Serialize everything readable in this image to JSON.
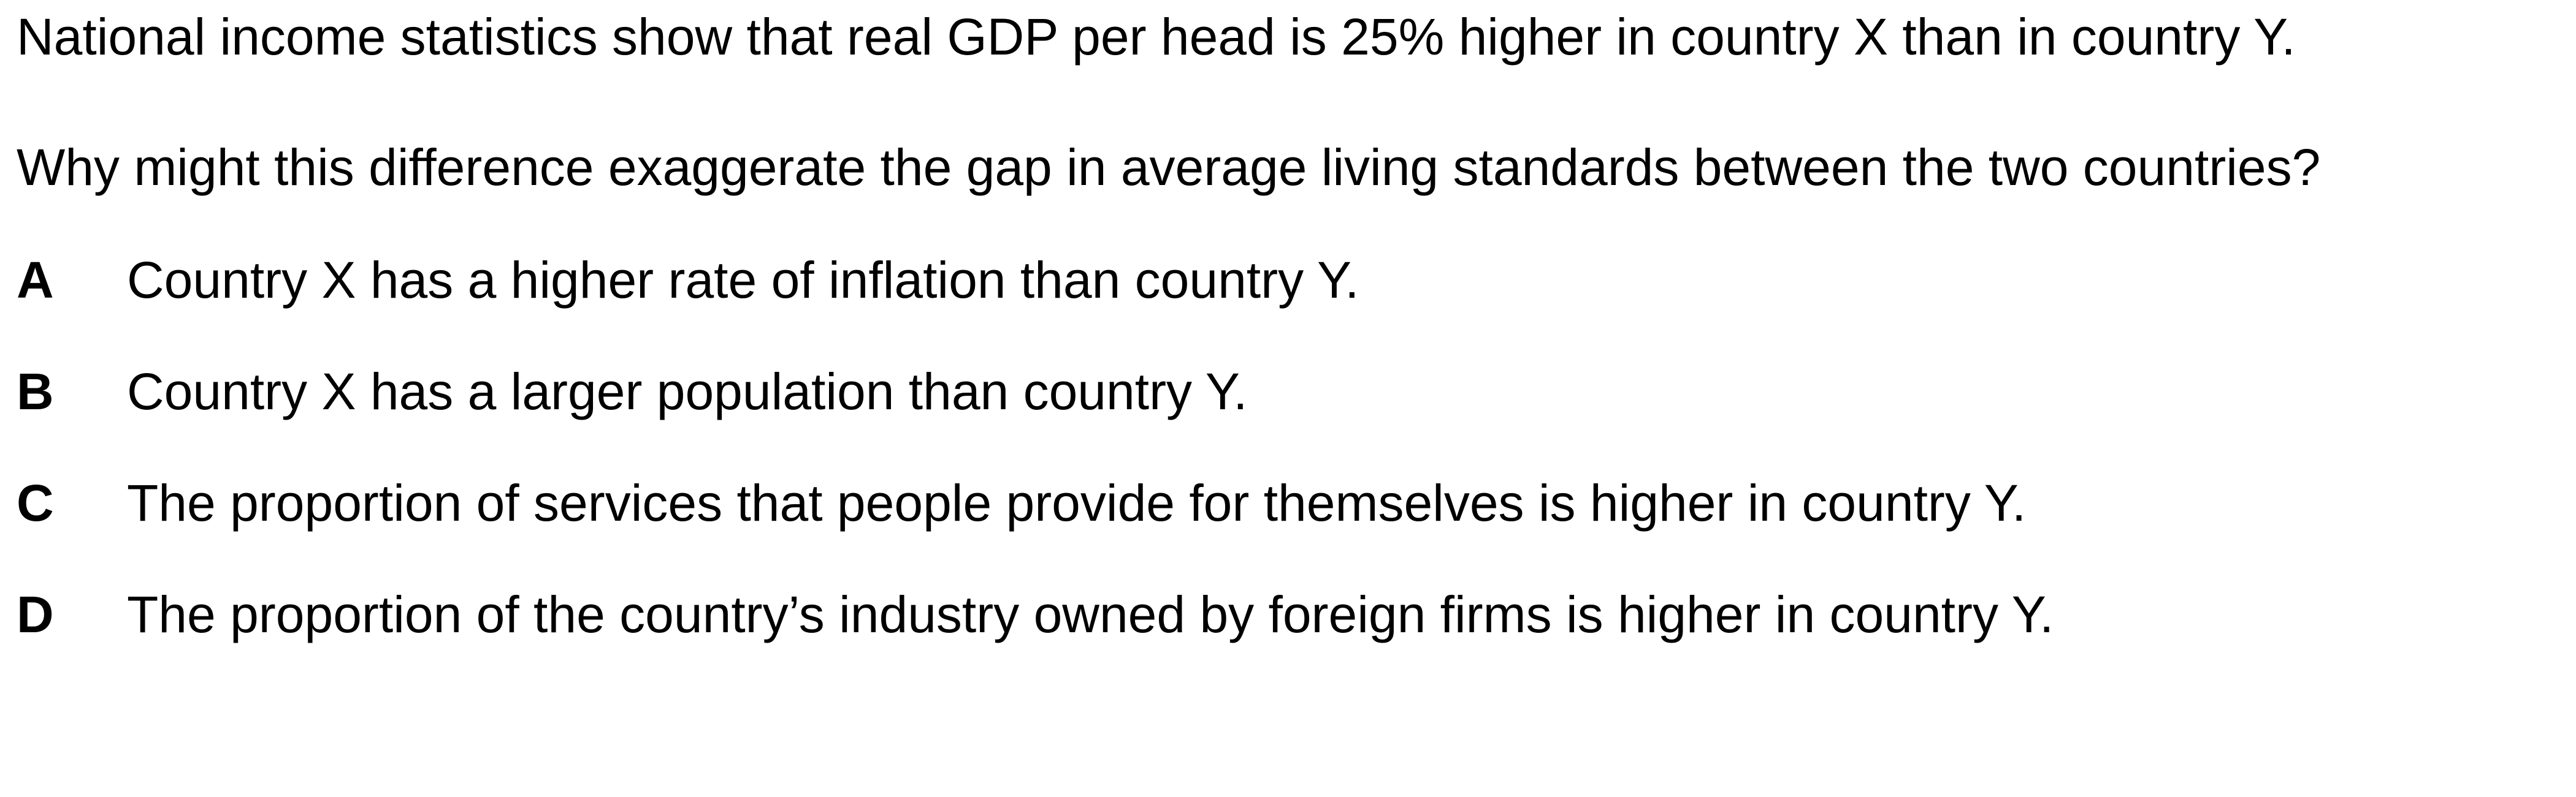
{
  "question": {
    "stem": "National income statistics show that real GDP per head is 25% higher in country X than in country Y.",
    "prompt": "Why might this difference exaggerate the gap in average living standards between the two countries?",
    "options": [
      {
        "letter": "A",
        "text": "Country X has a higher rate of inflation than country Y."
      },
      {
        "letter": "B",
        "text": "Country X has a larger population than country Y."
      },
      {
        "letter": "C",
        "text": "The proportion of services that people provide for themselves is higher in country Y."
      },
      {
        "letter": "D",
        "text": "The proportion of the country’s industry owned by foreign firms is higher in country Y."
      }
    ]
  }
}
